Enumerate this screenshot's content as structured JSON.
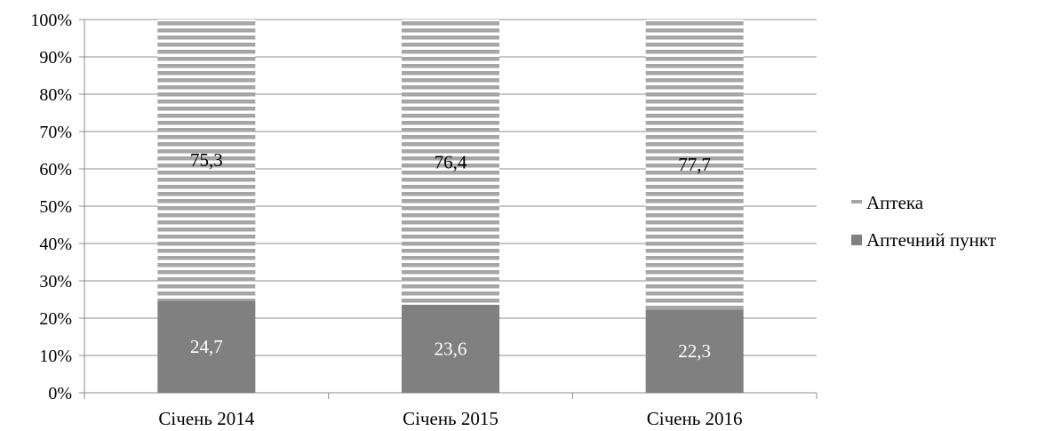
{
  "chart_data": {
    "type": "bar",
    "stacked": true,
    "percent_stacked": true,
    "categories": [
      "Січень 2014",
      "Січень 2015",
      "Січень 2016"
    ],
    "series": [
      {
        "name": "Аптечний пункт",
        "values": [
          24.7,
          23.6,
          22.3
        ],
        "labels": [
          "24,7",
          "23,6",
          "22,3"
        ],
        "color": "#808080",
        "pattern": "solid"
      },
      {
        "name": "Аптека",
        "values": [
          75.3,
          76.4,
          77.7
        ],
        "labels": [
          "75,3",
          "76,4",
          "77,7"
        ],
        "color": "#a6a6a6",
        "pattern": "horizontal-stripes"
      }
    ],
    "y_ticks": [
      "0%",
      "10%",
      "20%",
      "30%",
      "40%",
      "50%",
      "60%",
      "70%",
      "80%",
      "90%",
      "100%"
    ],
    "ylim": [
      0,
      100
    ],
    "grid": true,
    "legend": {
      "position": "right",
      "order": [
        "Аптека",
        "Аптечний пункт"
      ]
    }
  }
}
